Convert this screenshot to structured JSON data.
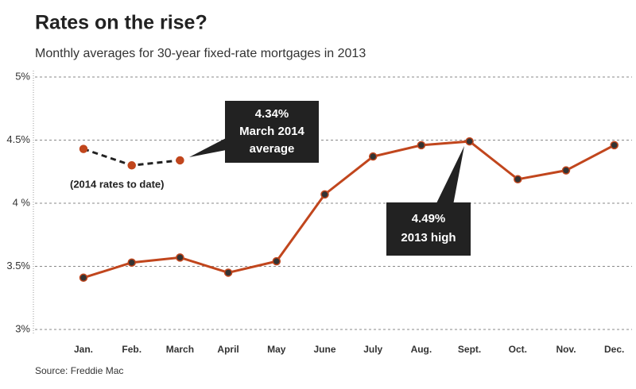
{
  "chart_data": {
    "type": "line",
    "title": "Rates on the rise?",
    "subtitle": "Monthly averages for 30-year fixed-rate mortgages in 2013",
    "source": "Source: Freddie Mac",
    "categories": [
      "Jan.",
      "Feb.",
      "March",
      "April",
      "May",
      "June",
      "July",
      "Aug.",
      "Sept.",
      "Oct.",
      "Nov.",
      "Dec."
    ],
    "series": [
      {
        "color": "#c1461d",
        "dashed": false,
        "values": [
          3.41,
          3.53,
          3.57,
          3.45,
          3.54,
          4.07,
          4.37,
          4.46,
          4.49,
          4.19,
          4.26,
          4.46
        ]
      },
      {
        "color": "#222222",
        "dashed": true,
        "values": [
          4.43,
          4.3,
          4.34,
          null,
          null,
          null,
          null,
          null,
          null,
          null,
          null,
          null
        ]
      }
    ],
    "ylim": [
      3,
      5
    ],
    "yticks": [
      {
        "value": 3,
        "label": "3%"
      },
      {
        "value": 3.5,
        "label": "3.5%"
      },
      {
        "value": 4,
        "label": "4 %"
      },
      {
        "value": 4.5,
        "label": "4.5%"
      },
      {
        "value": 5,
        "label": "5%"
      }
    ],
    "grid": true,
    "annotations": [
      {
        "lines": [
          "4.34%",
          "March 2014",
          "average"
        ]
      },
      {
        "text": "(2014 rates to date)"
      },
      {
        "lines": [
          "4.49%",
          "2013 high"
        ]
      }
    ]
  }
}
